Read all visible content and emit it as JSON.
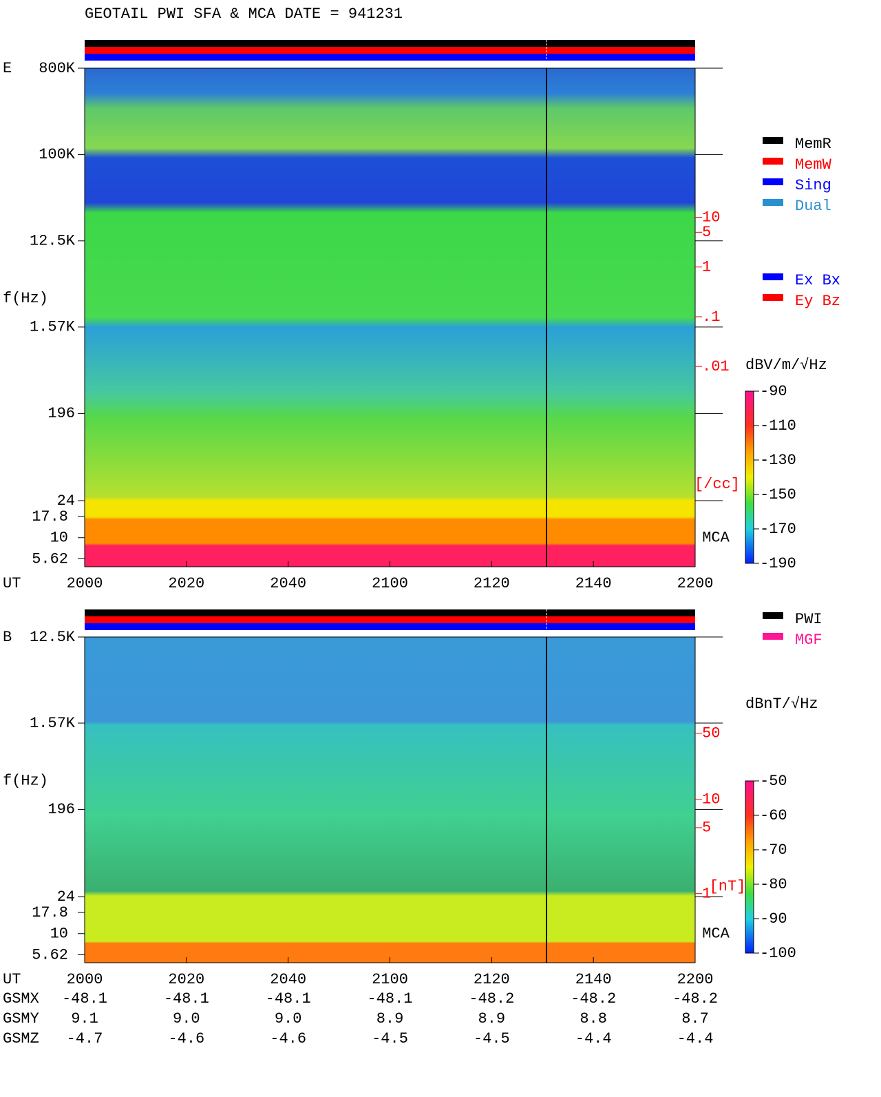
{
  "title": "GEOTAIL  PWI SFA & MCA   DATE = 941231",
  "chart_data": [
    {
      "type": "spectrogram",
      "panel_label": "E",
      "y_label": "f(Hz)",
      "x_label": "UT",
      "xticks": [
        "2000",
        "2020",
        "2040",
        "2100",
        "2120",
        "2140",
        "2200"
      ],
      "yscale": "log",
      "ylim": [
        24,
        800000
      ],
      "yticks": [
        {
          "value": 800000,
          "label": "800K"
        },
        {
          "value": 100000,
          "label": "100K"
        },
        {
          "value": 12500,
          "label": "12.5K"
        },
        {
          "value": 1570,
          "label": "1.57K"
        },
        196,
        24
      ],
      "mca_label": "MCA",
      "mca_ticks": [
        17.8,
        10,
        5.62
      ],
      "y2lim": [
        2e-05,
        10000
      ],
      "y2ticks": [
        10,
        5,
        1,
        {
          "value": 0.1,
          "label": ".1"
        },
        {
          "value": 0.01,
          "label": ".01"
        }
      ],
      "y2_label": "[/cc]",
      "colorbar": {
        "label": "dBV/m/√Hz",
        "lim": [
          -190,
          -90
        ],
        "ticks": [
          -90,
          -110,
          -130,
          -150,
          -170,
          -190
        ]
      },
      "legend": [
        {
          "name": "MemR",
          "color": "#000000"
        },
        {
          "name": "MemW",
          "color": "#ff0000"
        },
        {
          "name": "Sing",
          "color": "#0000ff"
        },
        {
          "name": "Dual",
          "color": "#2a8fd0"
        }
      ],
      "legend2": [
        {
          "name": "Ex Bx",
          "color": "#0000ff"
        },
        {
          "name": "Ey Bz",
          "color": "#ff0000"
        }
      ]
    },
    {
      "type": "spectrogram",
      "panel_label": "B",
      "y_label": "f(Hz)",
      "x_label": "UT",
      "xticks": [
        "2000",
        "2020",
        "2040",
        "2100",
        "2120",
        "2140",
        "2200"
      ],
      "yscale": "log",
      "ylim": [
        24,
        12500
      ],
      "yticks": [
        {
          "value": 12500,
          "label": "12.5K"
        },
        {
          "value": 1570,
          "label": "1.57K"
        },
        196,
        24
      ],
      "mca_label": "MCA",
      "mca_ticks": [
        17.8,
        10,
        5.62
      ],
      "y2lim": [
        0.93,
        525
      ],
      "y2ticks": [
        50,
        10,
        5,
        1
      ],
      "y2_label": "[nT]",
      "colorbar": {
        "label": "dBnT/√Hz",
        "lim": [
          -100,
          -50
        ],
        "ticks": [
          -50,
          -60,
          -70,
          -80,
          -90,
          -100
        ]
      },
      "legend": [
        {
          "name": "PWI",
          "color": "#000000"
        },
        {
          "name": "MGF",
          "color": "#ff1493"
        }
      ]
    }
  ],
  "ephemeris": [
    {
      "label": "GSMX",
      "values": [
        "-48.1",
        "-48.1",
        "-48.1",
        "-48.1",
        "-48.2",
        "-48.2",
        "-48.2"
      ]
    },
    {
      "label": "GSMY",
      "values": [
        "9.1",
        "9.0",
        "9.0",
        "8.9",
        "8.9",
        "8.8",
        "8.7"
      ]
    },
    {
      "label": "GSMZ",
      "values": [
        "-4.7",
        "-4.6",
        "-4.6",
        "-4.5",
        "-4.5",
        "-4.4",
        "-4.4"
      ]
    }
  ]
}
